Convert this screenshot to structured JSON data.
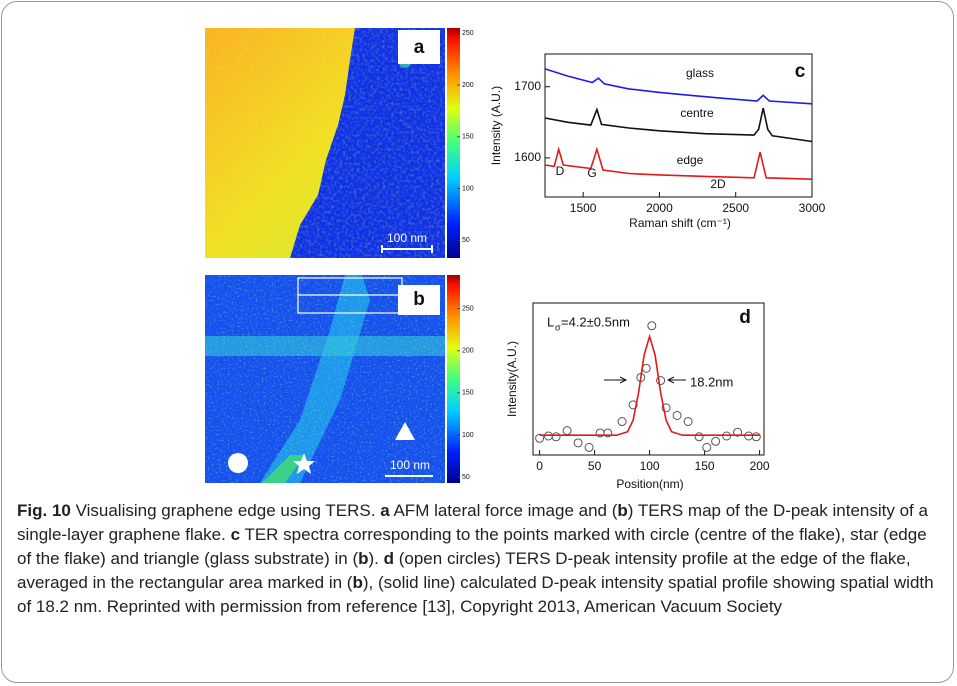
{
  "panels": {
    "a": {
      "label": "a",
      "scale_bar": "100 nm",
      "colorbar": {
        "lim": [
          33,
          255
        ],
        "ticks": [
          50,
          100,
          150,
          200,
          250
        ]
      }
    },
    "b": {
      "label": "b",
      "scale_bar": "100 nm",
      "colorbar": {
        "lim": [
          43,
          290
        ],
        "ticks": [
          50,
          100,
          150,
          200,
          250
        ]
      }
    }
  },
  "chart_data": [
    {
      "type": "line",
      "panel_label": "c",
      "x_label": "Raman shift (cm⁻¹)",
      "y_label": "Intensity (A.U.)",
      "xlim": [
        1250,
        3000
      ],
      "xticks": [
        1500,
        2000,
        2500,
        3000
      ],
      "ylim": [
        1545,
        1746
      ],
      "yticks": [
        1600,
        1700
      ],
      "series": [
        {
          "name": "glass",
          "color": "#1c1cf0",
          "x": [
            1250,
            1400,
            1560,
            1600,
            1640,
            1800,
            2000,
            2200,
            2400,
            2640,
            2680,
            2720,
            3000
          ],
          "values": [
            1725,
            1715,
            1706,
            1712,
            1704,
            1697,
            1692,
            1688,
            1684,
            1680,
            1688,
            1680,
            1676
          ]
        },
        {
          "name": "centre",
          "color": "#111111",
          "x": [
            1250,
            1400,
            1550,
            1590,
            1620,
            1800,
            2000,
            2300,
            2620,
            2650,
            2680,
            2710,
            2740,
            3000
          ],
          "values": [
            1656,
            1650,
            1646,
            1668,
            1647,
            1642,
            1638,
            1634,
            1632,
            1640,
            1670,
            1640,
            1631,
            1623
          ]
        },
        {
          "name": "edge",
          "color": "#e01a1a",
          "x": [
            1250,
            1310,
            1340,
            1370,
            1550,
            1590,
            1630,
            1800,
            2000,
            2300,
            2620,
            2660,
            2700,
            3000
          ],
          "values": [
            1590,
            1588,
            1612,
            1590,
            1585,
            1612,
            1583,
            1578,
            1576,
            1574,
            1572,
            1608,
            1572,
            1570
          ]
        }
      ],
      "annotations": [
        {
          "text": "D"
        },
        {
          "text": "G"
        },
        {
          "text": "2D"
        }
      ]
    },
    {
      "type": "scatter",
      "panel_label": "d",
      "x_label": "Position(nm)",
      "y_label": "Intensity(A.U.)",
      "xlim": [
        -6,
        204
      ],
      "xticks": [
        0,
        50,
        100,
        150,
        200
      ],
      "ylim": [
        0,
        1
      ],
      "series": [
        {
          "type": "scatter",
          "color": "#555555",
          "x": [
            0,
            8,
            15,
            25,
            35,
            45,
            55,
            62,
            75,
            85,
            92,
            97,
            102,
            110,
            115,
            125,
            135,
            145,
            152,
            160,
            170,
            180,
            190,
            197
          ],
          "values": [
            0.11,
            0.125,
            0.12,
            0.16,
            0.08,
            0.05,
            0.145,
            0.145,
            0.22,
            0.33,
            0.51,
            0.57,
            0.85,
            0.49,
            0.31,
            0.26,
            0.22,
            0.12,
            0.05,
            0.09,
            0.125,
            0.15,
            0.125,
            0.12
          ]
        },
        {
          "type": "line",
          "color": "#e01a1a",
          "x": [
            0,
            60,
            70,
            80,
            85,
            90,
            95,
            100,
            105,
            110,
            115,
            120,
            130,
            140,
            200
          ],
          "values": [
            0.13,
            0.13,
            0.13,
            0.153,
            0.229,
            0.411,
            0.657,
            0.78,
            0.657,
            0.411,
            0.229,
            0.153,
            0.13,
            0.13,
            0.13
          ]
        }
      ],
      "annotations": [
        {
          "main": "L",
          "sub": "σ",
          "rest": "=4.2±0.5nm"
        },
        {
          "text": "18.2nm"
        }
      ]
    }
  ],
  "caption": [
    {
      "text": "Fig. 10",
      "bold": true
    },
    {
      "text": " Visualising graphene edge using TERS. ",
      "bold": false
    },
    {
      "text": "a",
      "bold": true
    },
    {
      "text": " AFM lateral force image and (",
      "bold": false
    },
    {
      "text": "b",
      "bold": true
    },
    {
      "text": ") TERS map of the D-peak intensity of a single-layer graphene flake. ",
      "bold": false
    },
    {
      "text": "c",
      "bold": true
    },
    {
      "text": " TER spectra corresponding to the points marked with circle (centre of the flake), star (edge of the flake) and triangle (glass substrate) in (",
      "bold": false
    },
    {
      "text": "b",
      "bold": true
    },
    {
      "text": "). ",
      "bold": false
    },
    {
      "text": "d",
      "bold": true
    },
    {
      "text": " (open circles) TERS D-peak intensity profile at the edge of the flake, averaged in the rectangular area marked in (",
      "bold": false
    },
    {
      "text": "b",
      "bold": true
    },
    {
      "text": "), (solid line) calculated D-peak intensity spatial profile showing spatial width of 18.2 nm. Reprinted with permission from reference [13], Copyright 2013, American Vacuum Society",
      "bold": false
    }
  ]
}
